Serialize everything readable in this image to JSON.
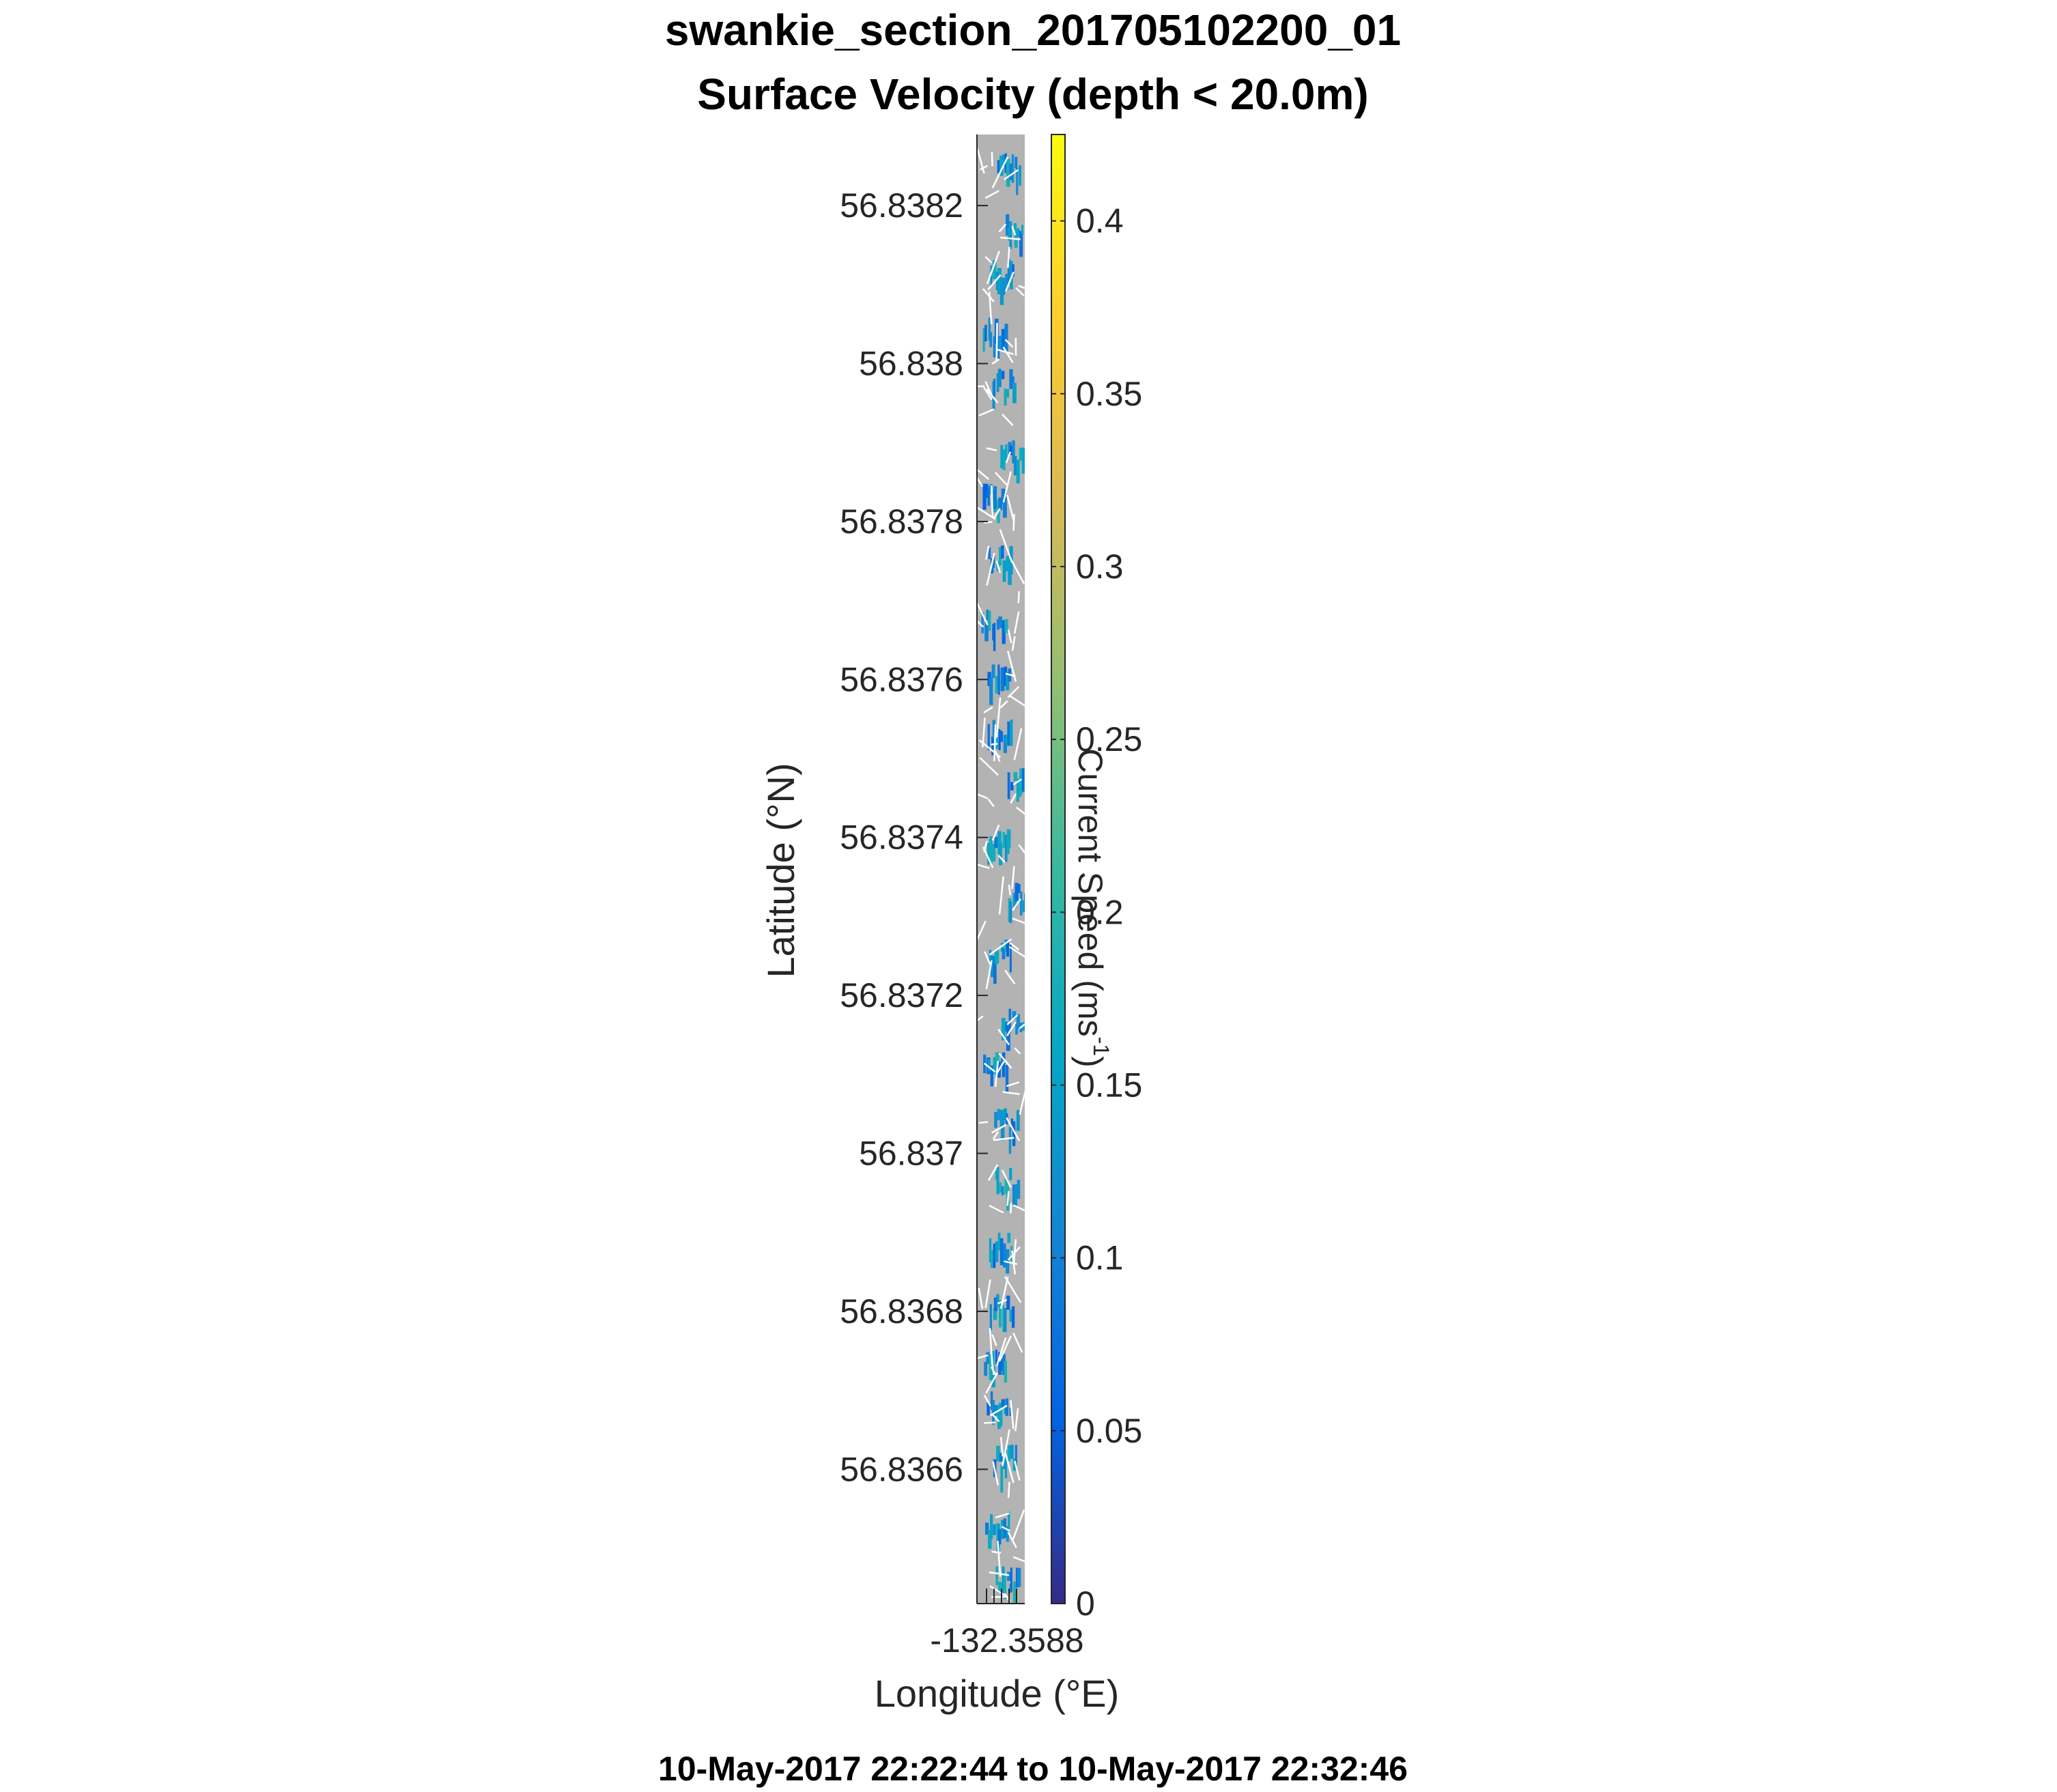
{
  "chart_data": {
    "type": "heatmap",
    "title": "swankie_section_201705102200_01",
    "subtitle": "Surface Velocity (depth < 20.0m)",
    "xlabel": "Longitude (°E)",
    "ylabel": "Latitude (°N)",
    "footer": "10-May-2017 22:22:44 to 10-May-2017 22:32:46",
    "x_ticks": [
      "-132.3588"
    ],
    "y_ticks": [
      {
        "value": 56.8382,
        "label": "56.8382"
      },
      {
        "value": 56.838,
        "label": "56.838"
      },
      {
        "value": 56.8378,
        "label": "56.8378"
      },
      {
        "value": 56.8376,
        "label": "56.8376"
      },
      {
        "value": 56.8374,
        "label": "56.8374"
      },
      {
        "value": 56.8372,
        "label": "56.8372"
      },
      {
        "value": 56.837,
        "label": "56.837"
      },
      {
        "value": 56.8368,
        "label": "56.8368"
      },
      {
        "value": 56.8366,
        "label": "56.8366"
      }
    ],
    "ylim": [
      56.83643,
      56.83829
    ],
    "colorbar": {
      "label_main": "Current Speed (ms",
      "label_exp": "-1",
      "label_close": ")",
      "range": [
        0,
        0.425
      ],
      "ticks": [
        {
          "value": 0,
          "label": "0"
        },
        {
          "value": 0.05,
          "label": "0.05"
        },
        {
          "value": 0.1,
          "label": "0.1"
        },
        {
          "value": 0.15,
          "label": "0.15"
        },
        {
          "value": 0.2,
          "label": "0.2"
        },
        {
          "value": 0.25,
          "label": "0.25"
        },
        {
          "value": 0.3,
          "label": "0.3"
        },
        {
          "value": 0.35,
          "label": "0.35"
        },
        {
          "value": 0.4,
          "label": "0.4"
        }
      ],
      "colormap": [
        "#352a87",
        "#0363e1",
        "#1485d4",
        "#06a7c6",
        "#38b99e",
        "#92bf73",
        "#d9ba56",
        "#fcce2e",
        "#f9fb0e"
      ]
    },
    "background_color": "#b3b3b3",
    "vector_color": "#ffffff",
    "grid": false,
    "legend": "none"
  }
}
